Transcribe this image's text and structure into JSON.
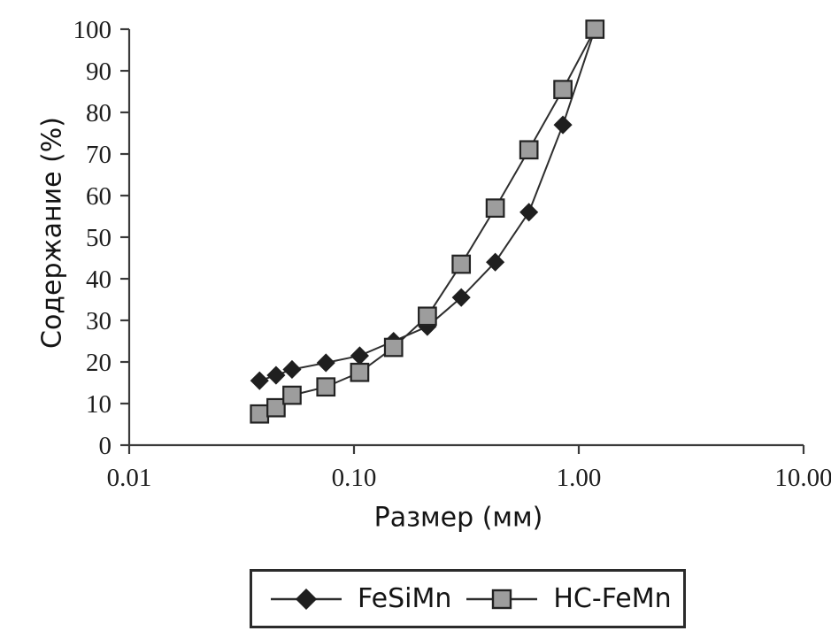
{
  "figure": {
    "background": "#ffffff",
    "text_color": "#141414"
  },
  "chart_data": {
    "type": "line",
    "x_scale": "log",
    "xlabel": "Размер (мм)",
    "ylabel": "Содержание (%)",
    "xlim": [
      0.01,
      10
    ],
    "ylim": [
      0,
      100
    ],
    "grid": false,
    "legend_position": "bottom-outside",
    "x": [
      0.038,
      0.045,
      0.053,
      0.075,
      0.106,
      0.15,
      0.212,
      0.3,
      0.425,
      0.6,
      0.85,
      1.18
    ],
    "series": [
      {
        "name": "FeSiMn",
        "marker": "diamond",
        "marker_fill": "#1f1f1f",
        "marker_stroke": "#1f1f1f",
        "values": [
          15.5,
          16.8,
          18.2,
          19.8,
          21.5,
          25,
          28.5,
          35.5,
          44,
          56,
          77,
          100
        ]
      },
      {
        "name": "HC-FeMn",
        "marker": "square",
        "marker_fill": "#9d9d9d",
        "marker_stroke": "#222222",
        "values": [
          7.5,
          9,
          12,
          14,
          17.5,
          23.5,
          31,
          43.5,
          57,
          71,
          85.5,
          100
        ]
      }
    ],
    "x_ticks": [
      {
        "value": 0.01,
        "label": "0.01"
      },
      {
        "value": 0.1,
        "label": "0.10"
      },
      {
        "value": 1,
        "label": "1.00"
      },
      {
        "value": 10,
        "label": "10.00"
      }
    ],
    "y_ticks": [
      {
        "value": 0,
        "label": "0"
      },
      {
        "value": 10,
        "label": "10"
      },
      {
        "value": 20,
        "label": "20"
      },
      {
        "value": 30,
        "label": "30"
      },
      {
        "value": 40,
        "label": "40"
      },
      {
        "value": 50,
        "label": "50"
      },
      {
        "value": 60,
        "label": "60"
      },
      {
        "value": 70,
        "label": "70"
      },
      {
        "value": 80,
        "label": "80"
      },
      {
        "value": 90,
        "label": "90"
      },
      {
        "value": 100,
        "label": "100"
      }
    ],
    "line_color": "#2e2e2e",
    "axis_color": "#3a3a3a"
  }
}
